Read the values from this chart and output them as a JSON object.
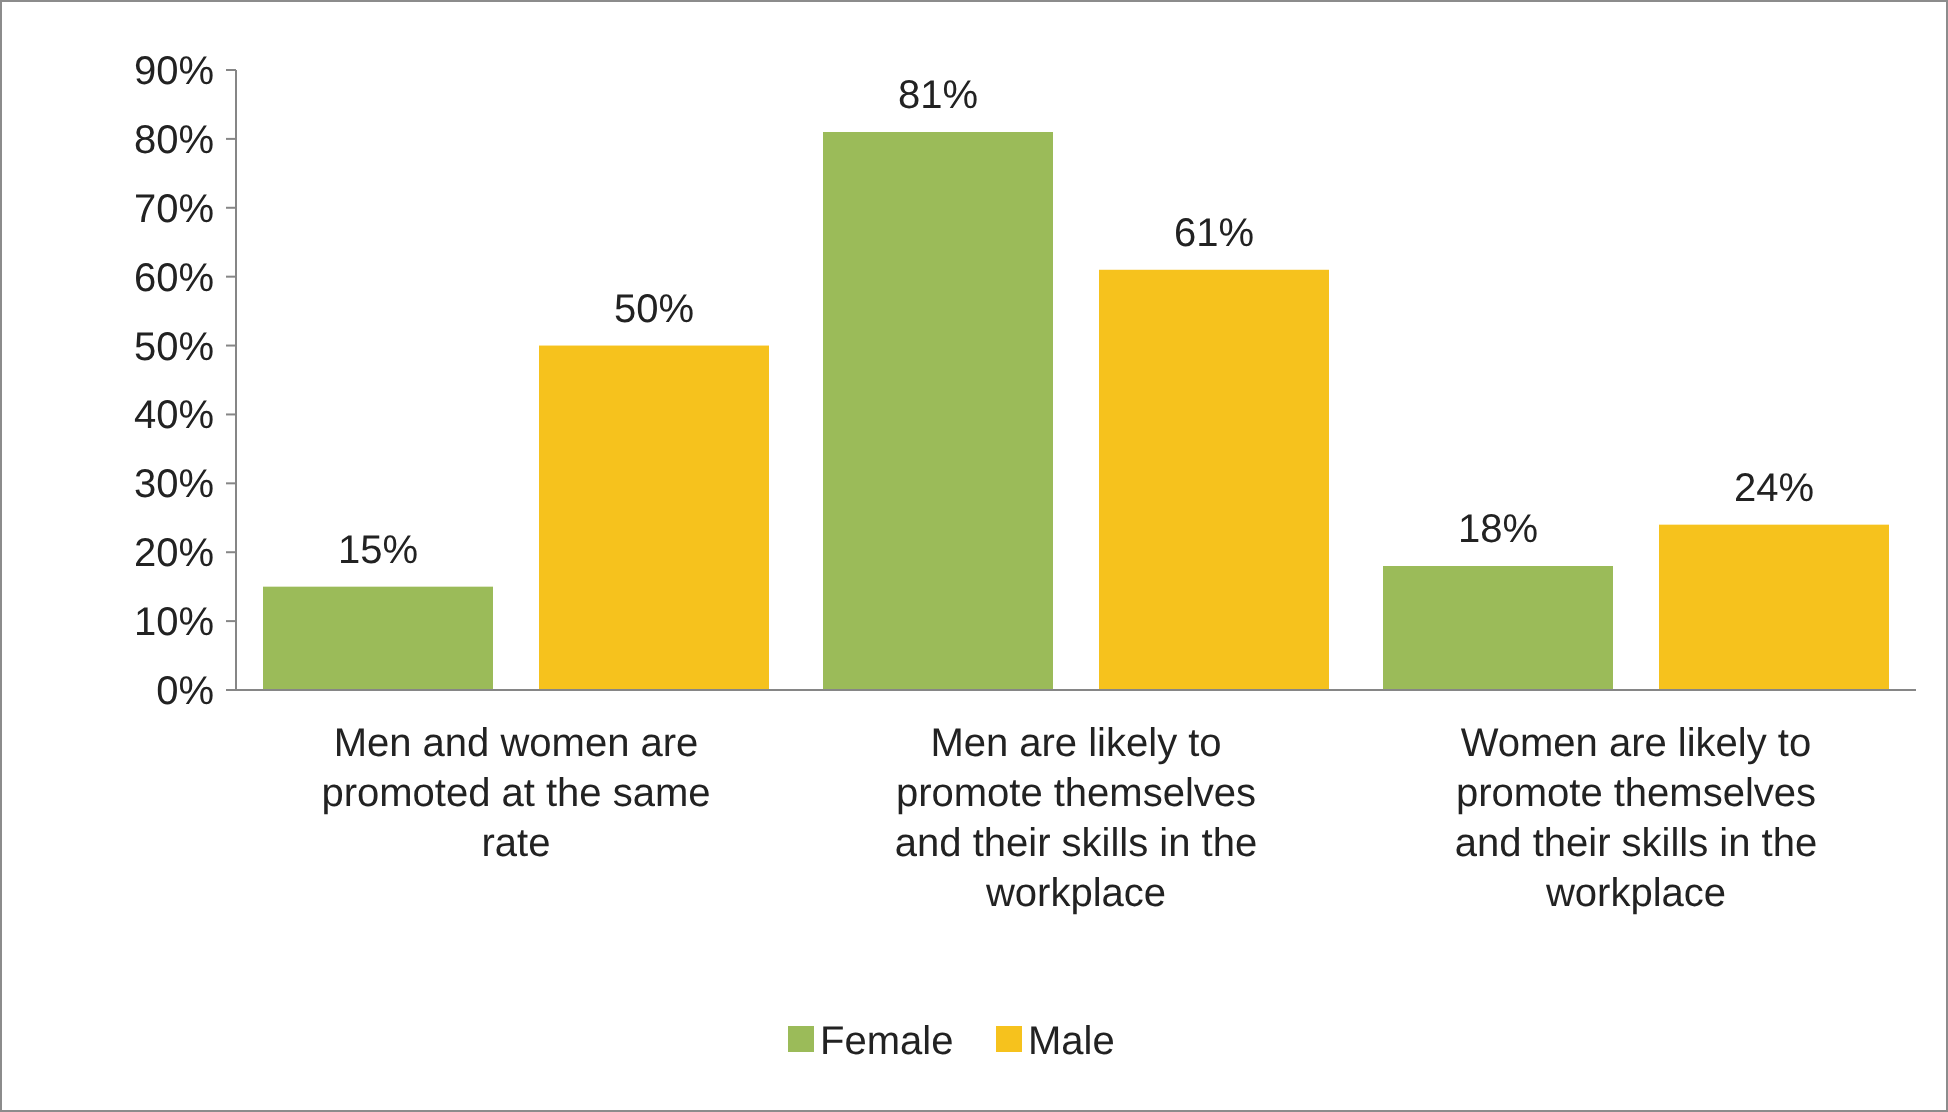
{
  "chart_data": {
    "type": "bar",
    "categories": [
      "Men and women are promoted at the same rate",
      "Men are likely to promote themselves and their skills in the workplace",
      "Women are likely to promote themselves and their skills in the workplace"
    ],
    "series": [
      {
        "name": "Female",
        "color": "#9bbb59",
        "values": [
          15,
          81,
          18
        ],
        "value_labels": [
          "15%",
          "81%",
          "18%"
        ]
      },
      {
        "name": "Male",
        "color": "#f6c21d",
        "values": [
          50,
          61,
          24
        ],
        "value_labels": [
          "50%",
          "61%",
          "24%"
        ]
      }
    ],
    "ylim": [
      0,
      90
    ],
    "yticks": [
      {
        "value": 0,
        "label": "0%"
      },
      {
        "value": 10,
        "label": "10%"
      },
      {
        "value": 20,
        "label": "20%"
      },
      {
        "value": 30,
        "label": "30%"
      },
      {
        "value": 40,
        "label": "40%"
      },
      {
        "value": 50,
        "label": "50%"
      },
      {
        "value": 60,
        "label": "60%"
      },
      {
        "value": 70,
        "label": "70%"
      },
      {
        "value": 80,
        "label": "80%"
      },
      {
        "value": 90,
        "label": "90%"
      }
    ],
    "grid": false,
    "legend": "bottom"
  }
}
